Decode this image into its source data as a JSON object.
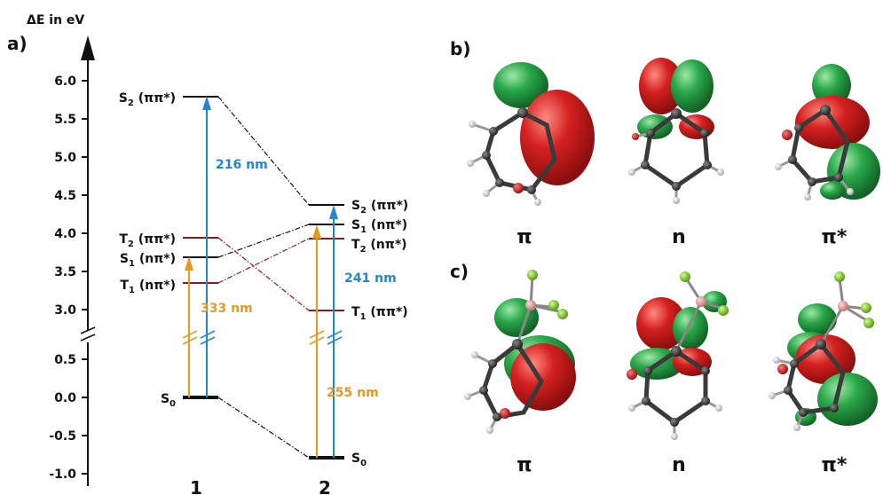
{
  "panels": {
    "a": "a)",
    "b": "b)",
    "c": "c)"
  },
  "axis": {
    "title": "ΔE in eV",
    "ticks_upper": [
      "6.0",
      "5.5",
      "5.0",
      "4.5",
      "4.0",
      "3.5",
      "3.0"
    ],
    "ticks_lower": [
      "0.5",
      "0.0",
      "-0.5",
      "-1.0"
    ]
  },
  "compounds": {
    "one": "1",
    "two": "2"
  },
  "states_1": {
    "S2": {
      "label": "S",
      "sub": "2",
      "char": " (ππ*)",
      "energy_ev": 5.78
    },
    "T2": {
      "label": "T",
      "sub": "2",
      "char": " (ππ*)",
      "energy_ev": 3.95
    },
    "S1": {
      "label": "S",
      "sub": "1",
      "char": " (nπ*)",
      "energy_ev": 3.7
    },
    "T1": {
      "label": "T",
      "sub": "1",
      "char": " (nπ*)",
      "energy_ev": 3.37
    },
    "S0": {
      "label": "S",
      "sub": "0",
      "char": "",
      "energy_ev": 0.0
    }
  },
  "states_2": {
    "S2": {
      "label": "S",
      "sub": "2",
      "char": " (ππ*)",
      "energy_ev": 4.37
    },
    "S1": {
      "label": "S",
      "sub": "1",
      "char": " (nπ*)",
      "energy_ev": 4.12
    },
    "T2": {
      "label": "T",
      "sub": "2",
      "char": " (nπ*)",
      "energy_ev": 3.93
    },
    "T1": {
      "label": "T",
      "sub": "1",
      "char": " (ππ*)",
      "energy_ev": 2.98
    },
    "S0": {
      "label": "S",
      "sub": "0",
      "char": "",
      "energy_ev": -0.8
    }
  },
  "transitions": {
    "t1_blue": "216 nm",
    "t1_orange": "333 nm",
    "t2_blue": "241 nm",
    "t2_orange": "255 nm"
  },
  "orbitals": {
    "row_b": [
      "π",
      "n",
      "π*"
    ],
    "row_c": [
      "π",
      "n",
      "π*"
    ]
  },
  "colors": {
    "blue": "#1f86d2",
    "orange": "#e39a1e",
    "dark_red": "#8b1a1a",
    "lobe_red": "#d42020",
    "lobe_green": "#2aa84a",
    "atom_c": "#3a3a3a",
    "atom_h": "#e6e6e6",
    "atom_o": "#cc2222",
    "atom_b": "#e8a3a3",
    "atom_f": "#8ad13a"
  }
}
